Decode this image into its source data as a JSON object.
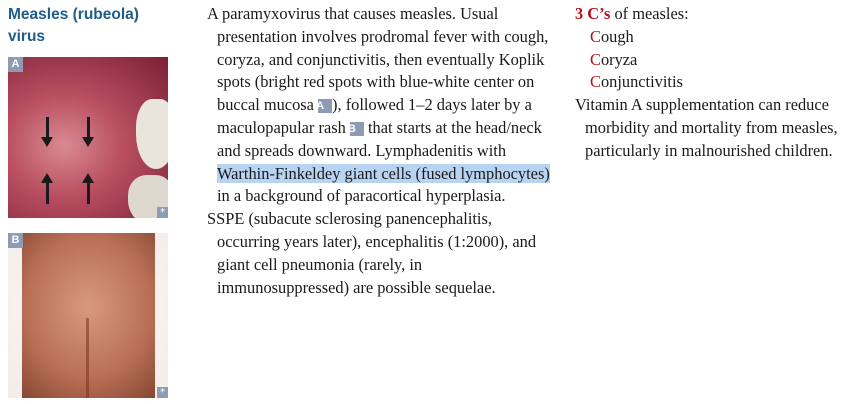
{
  "heading": {
    "line1": "Measles (rubeola)",
    "line2": "virus"
  },
  "images": [
    {
      "label": "A",
      "corner_mark": "*"
    },
    {
      "label": "B",
      "corner_mark": "*"
    }
  ],
  "description": {
    "p1": "A paramyxovirus that causes measles. Usual presentation involves prodromal fever with cough, coryza, and conjunctivitis, then eventually Koplik spots (bright red spots with blue-white center on buccal mucosa ",
    "ref_a": "A",
    "p2": "), followed 1–2 days later by a maculopapular rash ",
    "ref_b": "B",
    "p3": " that starts at the head/neck and spreads downward. Lymphadenitis with ",
    "highlight": "Warthin-Finkeldey giant cells (fused lymphocytes)",
    "p4": " in a background of paracortical hyperplasia.",
    "p5": "SSPE (subacute sclerosing panencephalitis, occurring years later), encephalitis (1:2000), and giant cell pneumonia (rarely, in immunosuppressed) are possible sequelae."
  },
  "mnemonic": {
    "title_red": "3 C’s",
    "title_rest": " of measles:",
    "items": [
      {
        "first": "C",
        "rest": "ough"
      },
      {
        "first": "C",
        "rest": "oryza"
      },
      {
        "first": "C",
        "rest": "onjunctivitis"
      }
    ]
  },
  "note": "Vitamin A supplementation can reduce morbidity and mortality from measles, particularly in malnourished children.",
  "colors": {
    "heading": "#1f5c8b",
    "mnemonic_red": "#b3141e",
    "highlight": "#b8d4f2",
    "badge": "#8b9cb4"
  }
}
